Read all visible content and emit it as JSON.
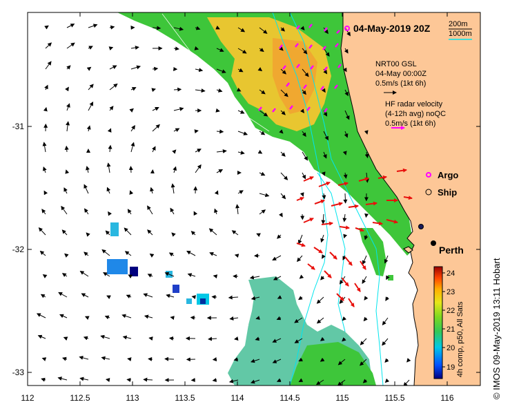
{
  "title": "04-May-2019 20Z",
  "scale_bar": {
    "label_short": "200m",
    "label_long": "1000m"
  },
  "model_legend": {
    "line1": "NRT00 GSL",
    "line2": "04-May 00:00Z",
    "line3": "0.5m/s (1kt 6h)"
  },
  "radar_legend": {
    "line1": "HF radar velocity",
    "line2": "(4-12h avg) noQC",
    "line3": "0.5m/s (1kt 6h)"
  },
  "markers": {
    "argo_label": "Argo",
    "ship_label": "Ship",
    "city_label": "Perth"
  },
  "colorbar": {
    "label": "4h comp, p50, All Sats",
    "ticks": [
      "19",
      "20",
      "21",
      "22",
      "23",
      "24"
    ],
    "colors": [
      "#00007f",
      "#0050ff",
      "#00c8e6",
      "#33c857",
      "#7cd820",
      "#e6e619",
      "#ffae00",
      "#ff4400",
      "#990000"
    ]
  },
  "credit": "© IMOS 09-May-2019 13:11 Hobart",
  "axes": {
    "x_ticks": [
      "112",
      "112.5",
      "113",
      "113.5",
      "114",
      "114.5",
      "115",
      "115.5",
      "116"
    ],
    "y_ticks": [
      "-31",
      "-32",
      "-33"
    ]
  },
  "colors": {
    "land": "#fdc797",
    "sst_green": "#3ec63a",
    "sst_cyan": "#62c8a6",
    "sst_yellow": "#e8c630",
    "model_arrow": "#000000",
    "radar_arrow": "#e8100c",
    "argo": "#ff00ff",
    "contour": "#00e5ee"
  }
}
